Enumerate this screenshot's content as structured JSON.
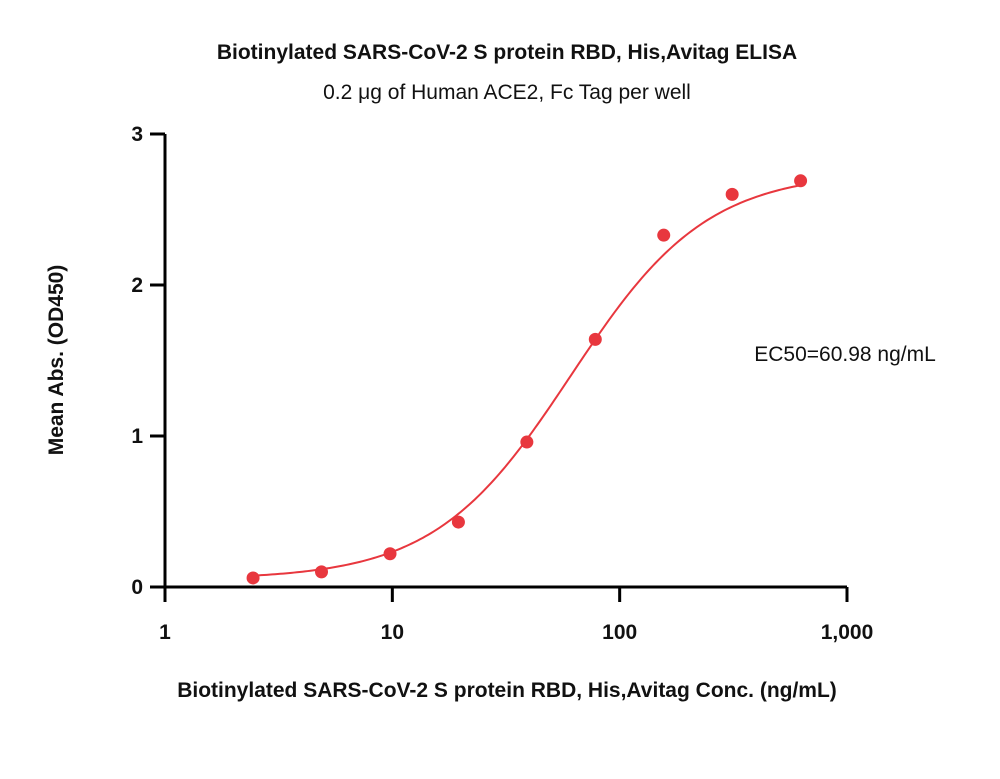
{
  "chart_data": {
    "type": "scatter",
    "title": "Biotinylated SARS-CoV-2 S protein RBD, His,Avitag ELISA",
    "subtitle": "0.2 μg of Human ACE2, Fc Tag per well",
    "xlabel": "Biotinylated SARS-CoV-2 S protein RBD, His,Avitag Conc. (ng/mL)",
    "ylabel": "Mean Abs. (OD450)",
    "x_scale": "log",
    "xlim": [
      1,
      1000
    ],
    "ylim": [
      0,
      3
    ],
    "x_ticks": [
      1,
      10,
      100,
      1000
    ],
    "x_tick_labels": [
      "1",
      "10",
      "100",
      "1,000"
    ],
    "y_ticks": [
      0,
      1,
      2,
      3
    ],
    "y_tick_labels": [
      "0",
      "1",
      "2",
      "3"
    ],
    "grid": false,
    "series": [
      {
        "x": [
          2.44,
          4.88,
          9.77,
          19.53,
          39.06,
          78.13,
          156.25,
          312.5,
          625
        ],
        "y": [
          0.06,
          0.1,
          0.22,
          0.43,
          0.96,
          1.64,
          2.33,
          2.6,
          2.69
        ],
        "color": "#e8373e"
      }
    ],
    "fit": {
      "model": "4PL",
      "bottom": 0.05,
      "top": 2.75,
      "ec50": 60.98,
      "hill": 1.45,
      "color": "#e8373e"
    },
    "annotation": "EC50=60.98 ng/mL"
  }
}
